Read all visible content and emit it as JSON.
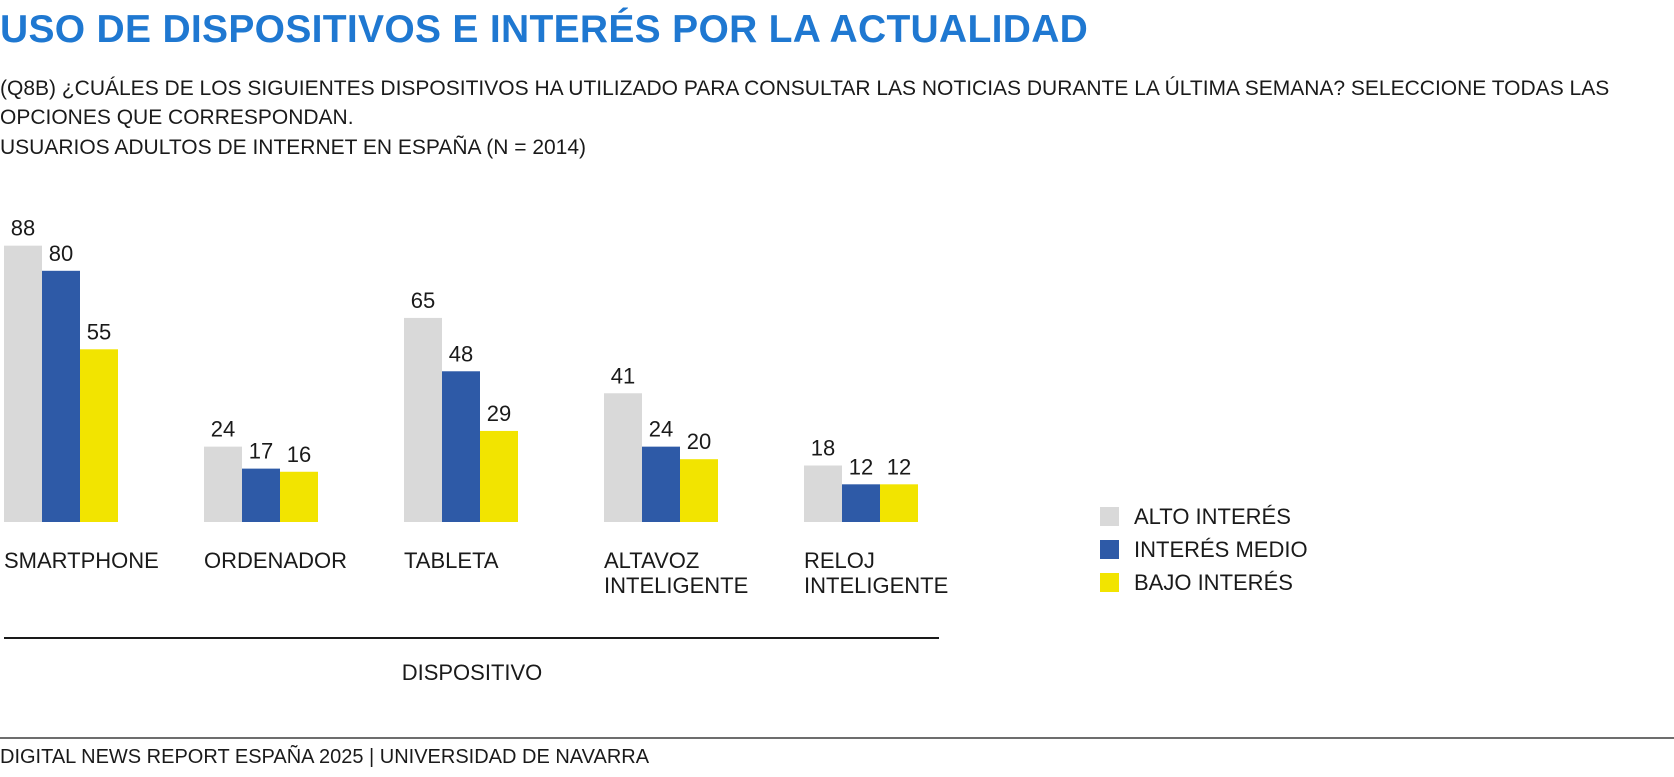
{
  "header": {
    "title": "USO DE DISPOSITIVOS E INTERÉS POR LA ACTUALIDAD",
    "question": "(Q8B) ¿CUÁLES DE LOS SIGUIENTES DISPOSITIVOS HA UTILIZADO PARA CONSULTAR LAS NOTICIAS  DURANTE LA ÚLTIMA SEMANA? SELECCIONE TODAS LAS OPCIONES QUE CORRESPONDAN.",
    "sample": "USUARIOS ADULTOS DE INTERNET EN ESPAÑA (N = 2014)"
  },
  "footer": {
    "source": "DIGITAL NEWS REPORT ESPAÑA 2025 | UNIVERSIDAD DE NAVARRA"
  },
  "chart_data": {
    "type": "bar",
    "title": "USO DE DISPOSITIVOS E INTERÉS POR LA ACTUALIDAD",
    "xlabel": "DISPOSITIVO",
    "ylabel": "",
    "categories": [
      [
        "SMARTPHONE"
      ],
      [
        "ORDENADOR"
      ],
      [
        "TABLETA"
      ],
      [
        "ALTAVOZ",
        "INTELIGENTE"
      ],
      [
        "RELOJ",
        "INTELIGENTE"
      ]
    ],
    "series": [
      {
        "name": "ALTO INTERÉS",
        "color": "#d9d9d9",
        "values": [
          88,
          24,
          65,
          41,
          18
        ]
      },
      {
        "name": "INTERÉS MEDIO",
        "color": "#2e5aa7",
        "values": [
          80,
          17,
          48,
          24,
          12
        ]
      },
      {
        "name": "BAJO INTERÉS",
        "color": "#f2e400",
        "values": [
          55,
          16,
          29,
          20,
          12
        ]
      }
    ],
    "ylim": [
      0,
      100
    ],
    "grid": false,
    "legend_position": "right"
  }
}
